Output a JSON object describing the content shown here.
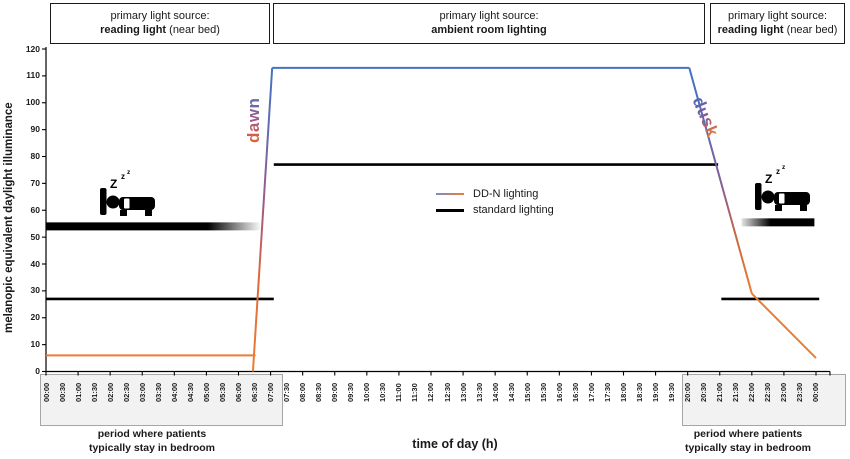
{
  "header": {
    "boxes": [
      {
        "line1": "primary light source:",
        "bold": "reading light",
        "suffix": " (near bed)"
      },
      {
        "line1": "primary light source:",
        "bold": "ambient room lighting",
        "suffix": ""
      },
      {
        "line1": "primary light source:",
        "bold": "reading light",
        "suffix": " (near bed)"
      }
    ]
  },
  "icons": {
    "z_big": "Z",
    "z_small": "z"
  },
  "footer": {
    "bedroom_captions": [
      {
        "line1": "period where patients",
        "line2": "typically stay in bedroom"
      },
      {
        "line1": "period where patients",
        "line2": "typically stay in bedroom"
      }
    ]
  },
  "chart_data": {
    "type": "line",
    "xlabel": "time of day (h)",
    "ylabel": "melanopic equivalent daylight illuminance",
    "xlim_hours": [
      0,
      24
    ],
    "ylim": [
      0,
      120
    ],
    "grid": false,
    "legend_position": "center",
    "y_ticks": [
      0,
      10,
      20,
      30,
      40,
      50,
      60,
      70,
      80,
      90,
      100,
      110,
      120
    ],
    "x_tick_labels": [
      "00:00",
      "00:30",
      "01:00",
      "01:30",
      "02:00",
      "02:30",
      "03:00",
      "03:30",
      "04:00",
      "04:30",
      "05:00",
      "05:30",
      "06:00",
      "06:30",
      "07:00",
      "07:30",
      "08:00",
      "08:30",
      "09:00",
      "09:30",
      "10:00",
      "10:30",
      "11:00",
      "11:30",
      "12:00",
      "12:30",
      "13:00",
      "13:30",
      "14:00",
      "14:30",
      "15:00",
      "15:30",
      "16:00",
      "16:30",
      "17:00",
      "17:30",
      "18:00",
      "18:30",
      "19:00",
      "19:30",
      "20:00",
      "20:30",
      "21:00",
      "21:30",
      "22:00",
      "22:30",
      "23:00",
      "23:30",
      "00:00"
    ],
    "series": [
      {
        "name": "DD-N lighting",
        "color_day": "#4472C4",
        "color_night": "#ED7D31",
        "segments": [
          {
            "stroke": "night",
            "points": [
              [
                0,
                6
              ],
              [
                6.53,
                6
              ]
            ]
          },
          {
            "stroke": "dawn-gradient",
            "points": [
              [
                6.45,
                0
              ],
              [
                7.05,
                113
              ]
            ]
          },
          {
            "stroke": "day",
            "points": [
              [
                7.05,
                113
              ],
              [
                20.05,
                113
              ]
            ]
          },
          {
            "stroke": "dusk-gradient",
            "points": [
              [
                20.05,
                113
              ],
              [
                22,
                29
              ]
            ]
          },
          {
            "stroke": "night",
            "points": [
              [
                22,
                29
              ],
              [
                24,
                5
              ]
            ]
          }
        ]
      },
      {
        "name": "standard lighting",
        "color": "#000000",
        "segments": [
          {
            "stroke": "color",
            "points": [
              [
                0,
                27
              ],
              [
                7.1,
                27
              ]
            ]
          },
          {
            "stroke": "color",
            "points": [
              [
                7.1,
                77
              ],
              [
                20.95,
                77
              ]
            ]
          },
          {
            "stroke": "color",
            "points": [
              [
                21.05,
                27
              ],
              [
                24.1,
                27
              ]
            ]
          }
        ]
      }
    ],
    "annotations": {
      "dawn_label": "dawn",
      "dusk_label": "dusk",
      "bedroom_bars": [
        {
          "from_h": 0,
          "to_h": 6.72,
          "value": 54,
          "fade": "out-right"
        },
        {
          "from_h": 21.68,
          "to_h": 23.95,
          "value": 55.5,
          "fade": "in-left"
        }
      ]
    }
  }
}
